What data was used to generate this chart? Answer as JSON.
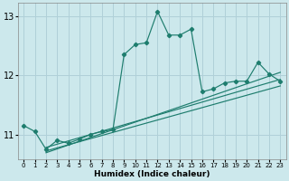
{
  "xlabel": "Humidex (Indice chaleur)",
  "bg_color": "#cce8ec",
  "grid_color": "#b0d0d8",
  "line_color": "#1e7d6e",
  "xlim": [
    -0.5,
    23.5
  ],
  "ylim": [
    10.58,
    13.22
  ],
  "yticks": [
    11,
    12,
    13
  ],
  "xticks": [
    0,
    1,
    2,
    3,
    4,
    5,
    6,
    7,
    8,
    9,
    10,
    11,
    12,
    13,
    14,
    15,
    16,
    17,
    18,
    19,
    20,
    21,
    22,
    23
  ],
  "line1_x": [
    0,
    1,
    2,
    3,
    4,
    5,
    6,
    7,
    8,
    9,
    10,
    11,
    12,
    13,
    14,
    15,
    16,
    17,
    18,
    19,
    20,
    21,
    22,
    23
  ],
  "line1_y": [
    11.15,
    11.05,
    10.75,
    10.9,
    10.85,
    10.92,
    11.0,
    11.05,
    11.08,
    12.35,
    12.52,
    12.55,
    13.08,
    12.68,
    12.68,
    12.78,
    11.72,
    11.77,
    11.87,
    11.9,
    11.9,
    12.22,
    12.02,
    11.9
  ],
  "line2_x": [
    2,
    23
  ],
  "line2_y": [
    10.78,
    11.93
  ],
  "line3_x": [
    2,
    23
  ],
  "line3_y": [
    10.72,
    11.82
  ],
  "line4_x": [
    2,
    23
  ],
  "line4_y": [
    10.69,
    12.05
  ]
}
